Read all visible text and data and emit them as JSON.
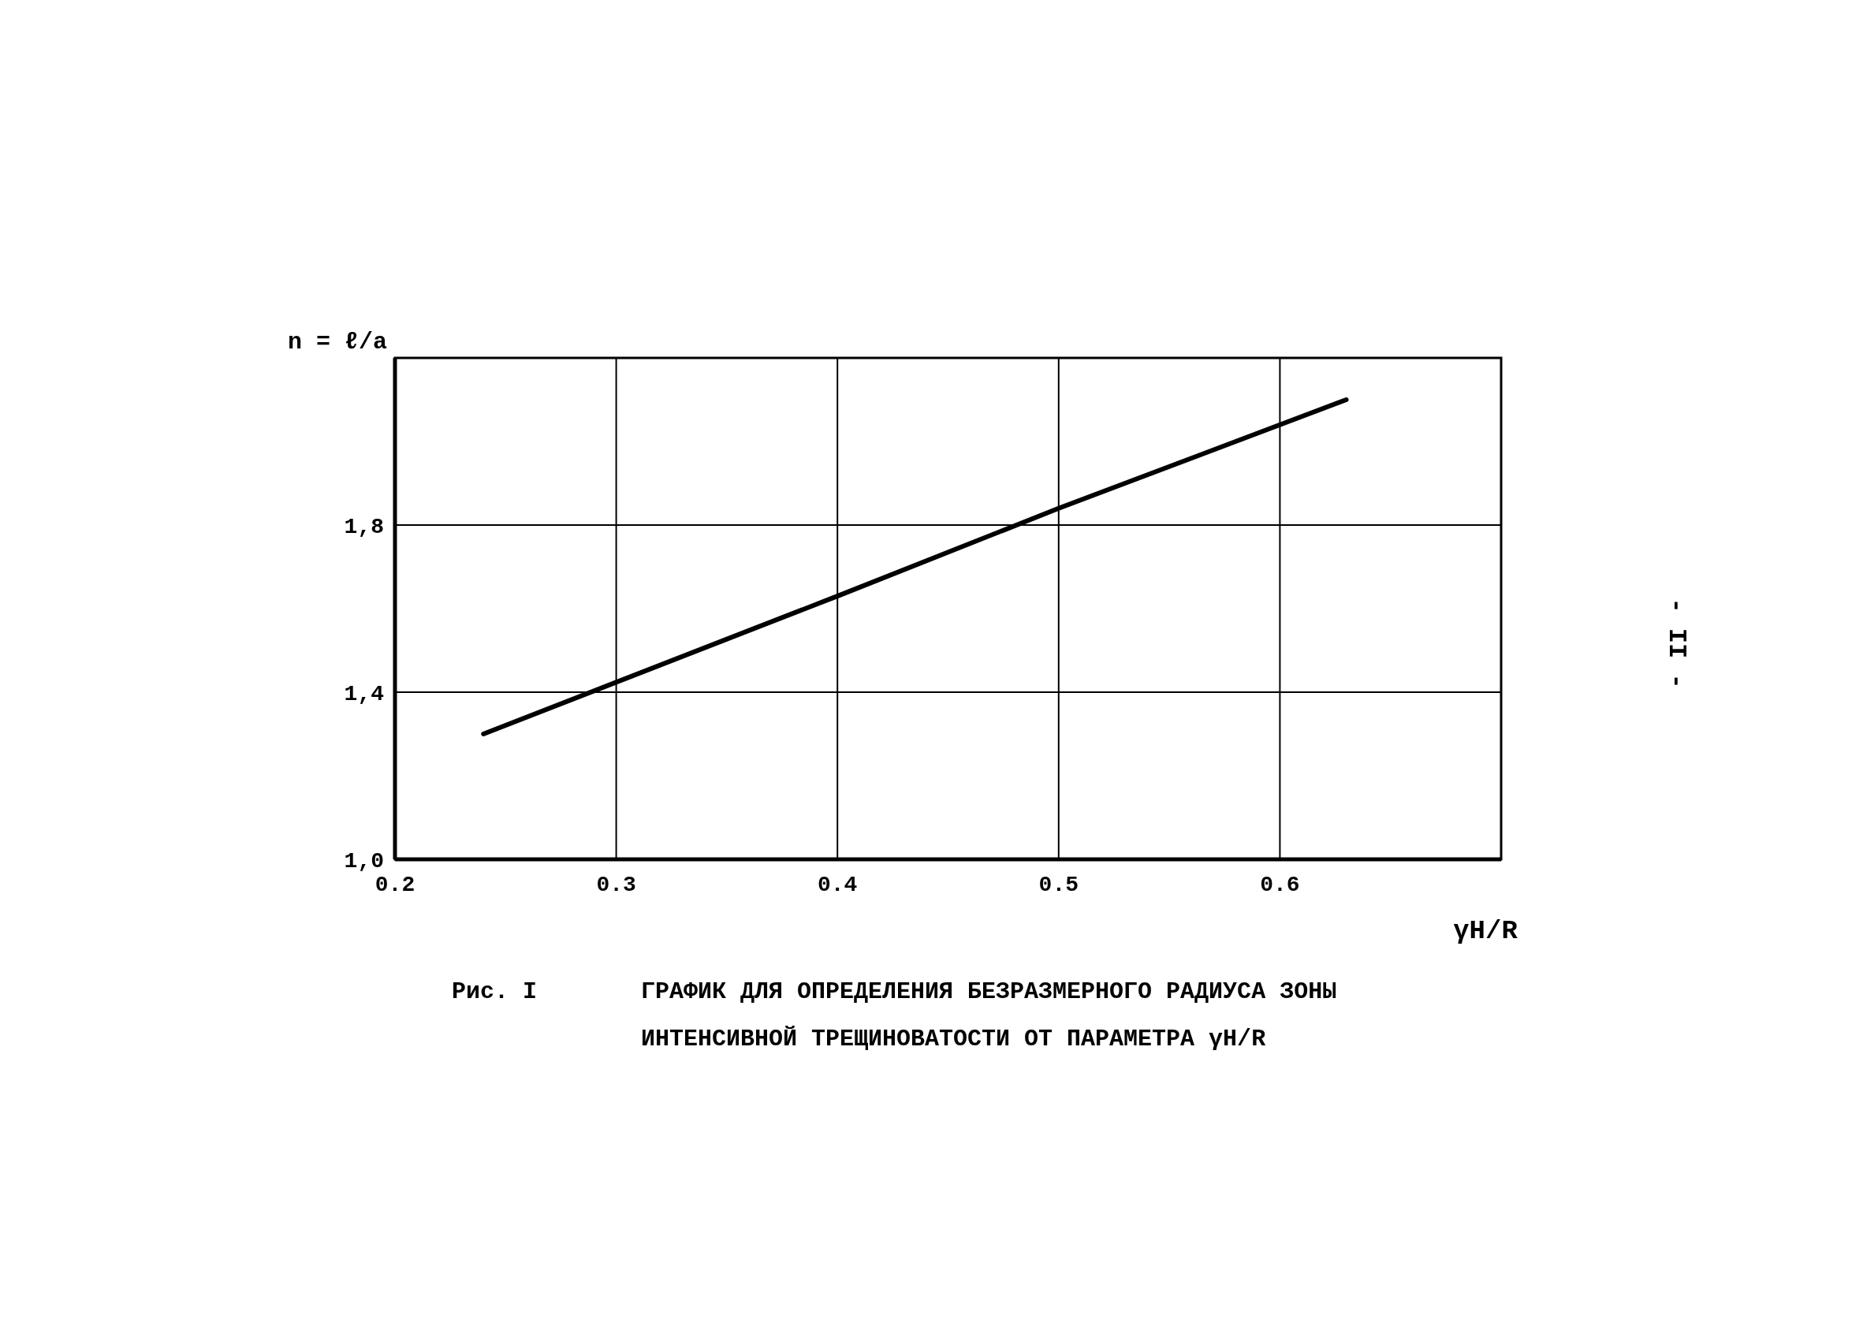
{
  "chart_data": {
    "type": "line",
    "title": "Рис. I",
    "subtitle": "ГРАФИК ДЛЯ ОПРЕДЕЛЕНИЯ БЕЗРАЗМЕРНОГО РАДИУСА ЗОНЫ ИНТЕНСИВНОЙ ТРЕЩИНОВАТОСТИ ОТ ПАРАМЕТРА γH/R",
    "xlabel": "γH/R",
    "ylabel": "n = ℓ/a",
    "x": [
      0.24,
      0.4,
      0.5,
      0.63
    ],
    "series": [
      {
        "color": "#000000",
        "values": [
          1.3,
          1.63,
          1.84,
          2.1
        ]
      }
    ],
    "xlim": [
      0.2,
      0.7
    ],
    "xticks": [
      {
        "value": 0.2,
        "label": "0.2"
      },
      {
        "value": 0.3,
        "label": "0.3"
      },
      {
        "value": 0.4,
        "label": "0.4"
      },
      {
        "value": 0.5,
        "label": "0.5"
      },
      {
        "value": 0.6,
        "label": "0.6"
      }
    ],
    "ylim": [
      1.0,
      2.2
    ],
    "yticks": [
      {
        "value": 1.0,
        "label": "1,0"
      },
      {
        "value": 1.4,
        "label": "1,4"
      },
      {
        "value": 1.8,
        "label": "1,8"
      }
    ],
    "grid": true,
    "marker": "none",
    "line_style": "solid",
    "annotations": [
      "- II -"
    ]
  }
}
